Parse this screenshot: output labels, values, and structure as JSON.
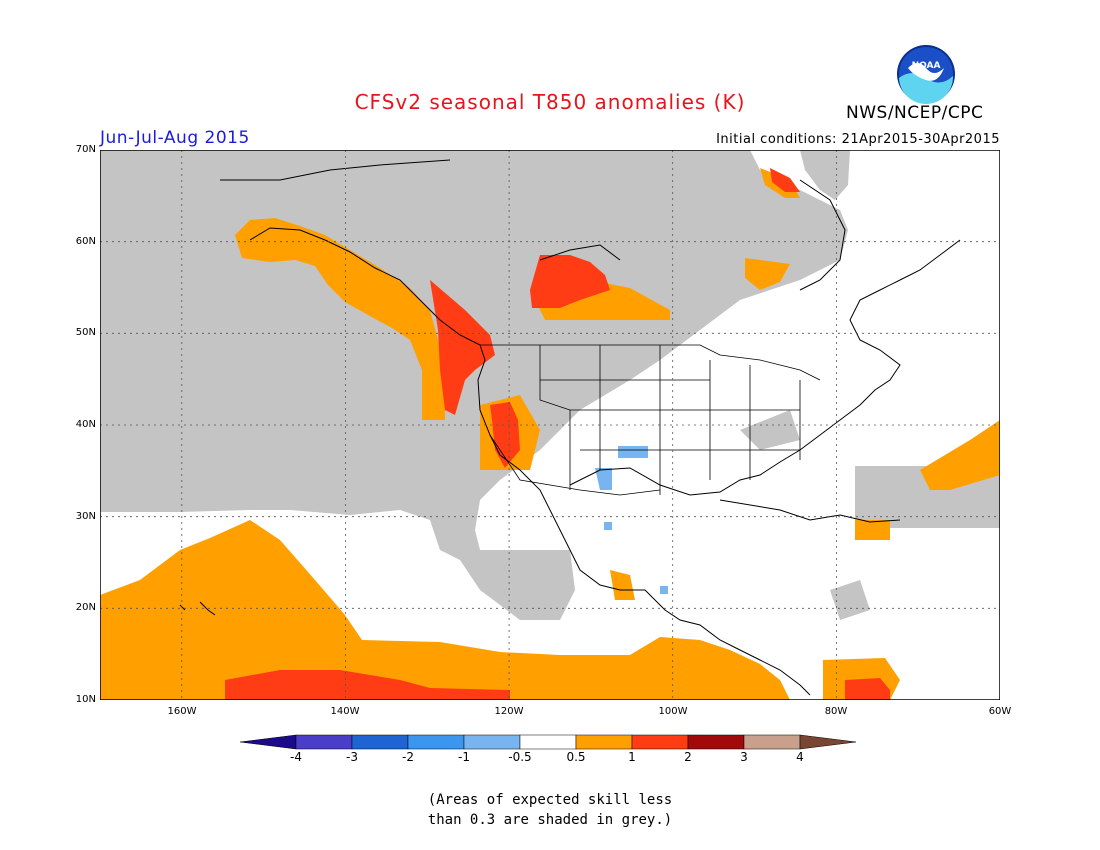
{
  "header": {
    "title": "CFSv2 seasonal T850 anomalies (K)",
    "period": "Jun-Jul-Aug 2015",
    "initial_conditions": "Initial conditions: 21Apr2015-30Apr2015",
    "agency": "NWS/NCEP/CPC",
    "logo_text": "NOAA"
  },
  "map": {
    "lat_labels": [
      "70N",
      "60N",
      "50N",
      "40N",
      "30N",
      "20N",
      "10N"
    ],
    "lon_labels": [
      "160W",
      "140W",
      "120W",
      "100W",
      "80W",
      "60W"
    ],
    "extent": {
      "lon": [
        -170,
        -60
      ],
      "lat": [
        10,
        70
      ]
    },
    "grid": true,
    "colors": {
      "grey_low_skill": "#c4c4c4",
      "anom_0_5_to_1": "#ffa000",
      "anom_1_to_2": "#ff3c14",
      "anom_neg_0_5_to_neg_1": "#78b4f0",
      "coastline": "#000000"
    }
  },
  "legend": {
    "labels": [
      "-4",
      "-3",
      "-2",
      "-1",
      "-0.5",
      "0.5",
      "1",
      "2",
      "3",
      "4"
    ],
    "colors": [
      "#1c0a8c",
      "#4a3ec8",
      "#1e64d2",
      "#3c96f0",
      "#78b4f0",
      "#ffffff",
      "#ffa000",
      "#ff3c14",
      "#a00a0a",
      "#c8a08c",
      "#784632"
    ]
  },
  "note": {
    "line1": "(Areas of expected skill less",
    "line2": "than 0.3 are shaded in grey.)"
  }
}
